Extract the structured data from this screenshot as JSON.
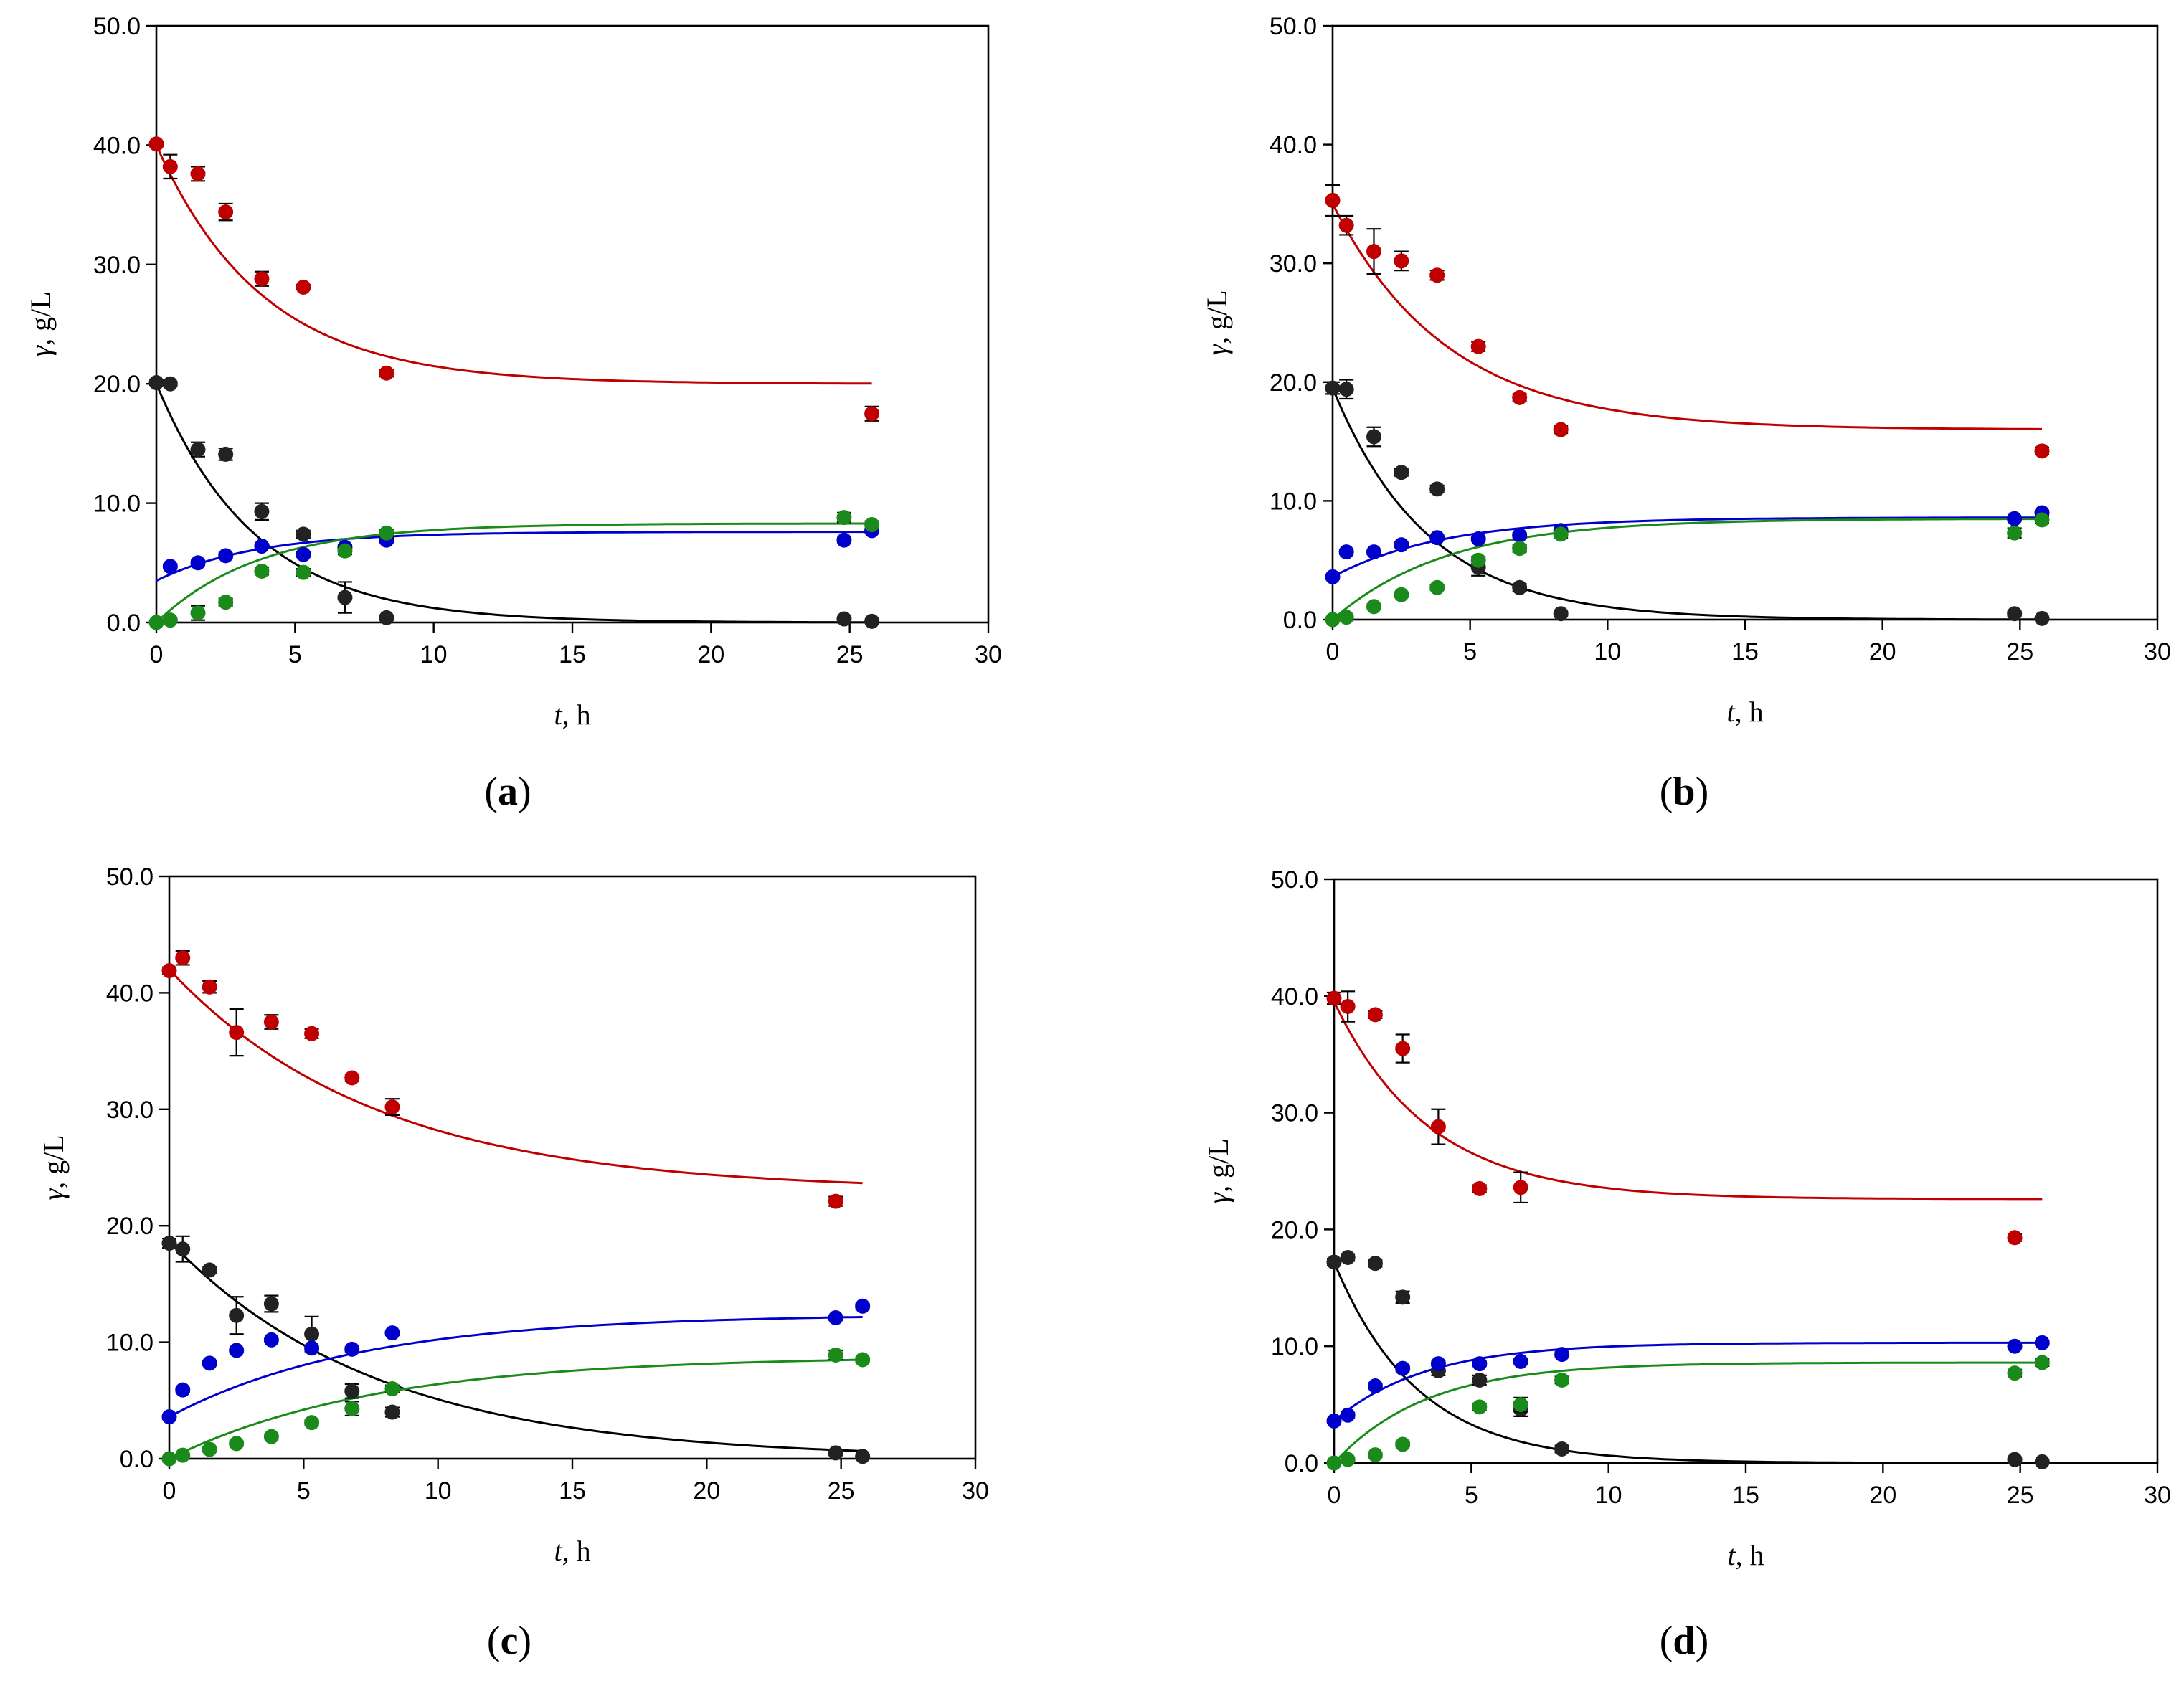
{
  "chart_data": [
    {
      "type": "scatter",
      "label": "a",
      "xlabel_var": "t",
      "xlabel_unit": ", h",
      "ylabel_var": "γ",
      "ylabel_unit": ", g/L",
      "xlim": [
        0,
        30
      ],
      "ylim": [
        0,
        50
      ],
      "xticks": [
        0,
        5,
        10,
        15,
        20,
        25,
        30
      ],
      "yticks": [
        "0.0",
        "10.0",
        "20.0",
        "30.0",
        "40.0",
        "50.0"
      ],
      "series": [
        {
          "color": "#c00000",
          "x": [
            0,
            0.5,
            1.5,
            2.5,
            3.8,
            5.3,
            8.3,
            25.8
          ],
          "y": [
            40.1,
            38.2,
            37.6,
            34.4,
            28.8,
            28.1,
            20.9,
            17.5
          ],
          "err": [
            0.2,
            1.0,
            0.6,
            0.7,
            0.6,
            0.2,
            0.3,
            0.6
          ]
        },
        {
          "color": "#222222",
          "x": [
            0,
            0.5,
            1.5,
            2.5,
            3.8,
            5.3,
            6.8,
            8.3,
            24.8,
            25.8
          ],
          "y": [
            20.1,
            20.0,
            14.5,
            14.1,
            9.3,
            7.4,
            2.1,
            0.4,
            0.3,
            0.1
          ],
          "err": [
            0.2,
            0.2,
            0.6,
            0.5,
            0.7,
            0.3,
            1.3,
            0.2,
            0.1,
            0.1
          ]
        },
        {
          "color": "#0000cc",
          "x": [
            0.5,
            1.5,
            2.5,
            3.8,
            5.3,
            6.8,
            8.3,
            24.8,
            25.8
          ],
          "y": [
            4.7,
            5.0,
            5.6,
            6.4,
            5.7,
            6.3,
            6.9,
            6.9,
            7.7
          ],
          "err": [
            0.2,
            0.2,
            0.2,
            0.2,
            0.2,
            0.2,
            0.2,
            0.2,
            0.2
          ]
        },
        {
          "color": "#1a8a1a",
          "x": [
            0,
            0.5,
            1.5,
            2.5,
            3.8,
            5.3,
            6.8,
            8.3,
            24.8,
            25.8
          ],
          "y": [
            0.0,
            0.2,
            0.8,
            1.7,
            4.3,
            4.2,
            6.0,
            7.5,
            8.8,
            8.2
          ],
          "err": [
            0.1,
            0.1,
            0.6,
            0.3,
            0.3,
            0.3,
            0.3,
            0.3,
            0.4,
            0.3
          ]
        }
      ],
      "fits": [
        {
          "color": "#c00000",
          "y0": 40.0,
          "yinf": 20.0,
          "k": 0.26
        },
        {
          "color": "#000000",
          "y0": 20.0,
          "yinf": 0.0,
          "k": 0.28
        },
        {
          "color": "#0000cc",
          "y0": 3.5,
          "yinf": 7.6,
          "k": 0.28
        },
        {
          "color": "#1a8a1a",
          "y0": 0.0,
          "yinf": 8.3,
          "k": 0.27
        }
      ]
    },
    {
      "type": "scatter",
      "label": "b",
      "xlabel_var": "t",
      "xlabel_unit": ", h",
      "ylabel_var": "γ",
      "ylabel_unit": ", g/L",
      "xlim": [
        0,
        30
      ],
      "ylim": [
        0,
        50
      ],
      "xticks": [
        0,
        5,
        10,
        15,
        20,
        25,
        30
      ],
      "yticks": [
        "0.0",
        "10.0",
        "20.0",
        "30.0",
        "40.0",
        "50.0"
      ],
      "series": [
        {
          "color": "#c00000",
          "x": [
            0,
            0.5,
            1.5,
            2.5,
            3.8,
            5.3,
            6.8,
            8.3,
            25.8
          ],
          "y": [
            35.3,
            33.2,
            31.0,
            30.2,
            29.0,
            23.0,
            18.7,
            16.0,
            14.2
          ],
          "err": [
            1.3,
            0.8,
            1.9,
            0.8,
            0.4,
            0.4,
            0.3,
            0.3,
            0.3
          ]
        },
        {
          "color": "#222222",
          "x": [
            0,
            0.5,
            1.5,
            2.5,
            3.8,
            5.3,
            6.8,
            8.3,
            24.8,
            25.8
          ],
          "y": [
            19.5,
            19.4,
            15.4,
            12.4,
            11.0,
            4.4,
            2.7,
            0.5,
            0.5,
            0.1
          ],
          "err": [
            0.5,
            0.8,
            0.8,
            0.3,
            0.3,
            0.7,
            0.3,
            0.2,
            0.2,
            0.1
          ]
        },
        {
          "color": "#0000cc",
          "x": [
            0,
            0.5,
            1.5,
            2.5,
            3.8,
            5.3,
            6.8,
            8.3,
            24.8,
            25.8
          ],
          "y": [
            3.6,
            5.7,
            5.7,
            6.3,
            6.9,
            6.8,
            7.1,
            7.5,
            8.5,
            9.0
          ],
          "err": [
            0.2,
            0.2,
            0.2,
            0.2,
            0.2,
            0.2,
            0.2,
            0.2,
            0.2,
            0.2
          ]
        },
        {
          "color": "#1a8a1a",
          "x": [
            0,
            0.5,
            1.5,
            2.5,
            3.8,
            5.3,
            6.8,
            8.3,
            24.8,
            25.8
          ],
          "y": [
            0.0,
            0.2,
            1.1,
            2.1,
            2.7,
            5.0,
            6.0,
            7.2,
            7.3,
            8.4
          ],
          "err": [
            0.1,
            0.1,
            0.2,
            0.2,
            0.2,
            0.3,
            0.3,
            0.3,
            0.4,
            0.3
          ]
        }
      ],
      "fits": [
        {
          "color": "#c00000",
          "y0": 35.0,
          "yinf": 16.0,
          "k": 0.24
        },
        {
          "color": "#000000",
          "y0": 19.5,
          "yinf": 0.0,
          "k": 0.29
        },
        {
          "color": "#0000cc",
          "y0": 3.6,
          "yinf": 8.6,
          "k": 0.25
        },
        {
          "color": "#1a8a1a",
          "y0": 0.0,
          "yinf": 8.5,
          "k": 0.24
        }
      ]
    },
    {
      "type": "scatter",
      "label": "c",
      "xlabel_var": "t",
      "xlabel_unit": ", h",
      "ylabel_var": "γ",
      "ylabel_unit": ", g/L",
      "xlim": [
        0,
        30
      ],
      "ylim": [
        0,
        50
      ],
      "xticks": [
        0,
        5,
        10,
        15,
        20,
        25,
        30
      ],
      "yticks": [
        "0.0",
        "10.0",
        "20.0",
        "30.0",
        "40.0",
        "50.0"
      ],
      "series": [
        {
          "color": "#c00000",
          "x": [
            0,
            0.5,
            1.5,
            2.5,
            3.8,
            5.3,
            6.8,
            8.3,
            24.8
          ],
          "y": [
            41.9,
            43.0,
            40.5,
            36.6,
            37.5,
            36.5,
            32.7,
            30.2,
            22.1
          ],
          "err": [
            0.3,
            0.6,
            0.5,
            2.0,
            0.6,
            0.4,
            0.3,
            0.7,
            0.4
          ]
        },
        {
          "color": "#222222",
          "x": [
            0,
            0.5,
            1.5,
            2.5,
            3.8,
            5.3,
            6.8,
            8.3,
            24.8,
            25.8
          ],
          "y": [
            18.5,
            18.0,
            16.2,
            12.3,
            13.3,
            10.7,
            5.8,
            4.0,
            0.5,
            0.2
          ],
          "err": [
            0.4,
            1.1,
            0.3,
            1.6,
            0.7,
            1.5,
            0.6,
            0.4,
            0.2,
            0.1
          ]
        },
        {
          "color": "#0000cc",
          "x": [
            0,
            0.5,
            1.5,
            2.5,
            3.8,
            5.3,
            6.8,
            8.3,
            24.8,
            25.8
          ],
          "y": [
            3.6,
            5.9,
            8.2,
            9.3,
            10.2,
            9.5,
            9.4,
            10.8,
            12.1,
            13.1
          ],
          "err": [
            0.2,
            0.2,
            0.2,
            0.2,
            0.2,
            0.2,
            0.2,
            0.2,
            0.2,
            0.2
          ]
        },
        {
          "color": "#1a8a1a",
          "x": [
            0,
            0.5,
            1.5,
            2.5,
            3.8,
            5.3,
            6.8,
            8.3,
            24.8,
            25.8
          ],
          "y": [
            0.0,
            0.3,
            0.8,
            1.3,
            1.9,
            3.1,
            4.3,
            6.0,
            8.9,
            8.5
          ],
          "err": [
            0.1,
            0.1,
            0.2,
            0.2,
            0.2,
            0.2,
            0.6,
            0.3,
            0.4,
            0.2
          ]
        }
      ],
      "fits": [
        {
          "color": "#c00000",
          "y0": 42.0,
          "yinf": 23.0,
          "k": 0.13
        },
        {
          "color": "#000000",
          "y0": 18.7,
          "yinf": 0.0,
          "k": 0.13
        },
        {
          "color": "#0000cc",
          "y0": 3.6,
          "yinf": 12.4,
          "k": 0.14
        },
        {
          "color": "#1a8a1a",
          "y0": 0.0,
          "yinf": 8.8,
          "k": 0.13
        }
      ]
    },
    {
      "type": "scatter",
      "label": "d",
      "xlabel_var": "t",
      "xlabel_unit": ", h",
      "ylabel_var": "γ",
      "ylabel_unit": ", g/L",
      "xlim": [
        0,
        30
      ],
      "ylim": [
        0,
        50
      ],
      "xticks": [
        0,
        5,
        10,
        15,
        20,
        25,
        30
      ],
      "yticks": [
        "0.0",
        "10.0",
        "20.0",
        "30.0",
        "40.0",
        "50.0"
      ],
      "series": [
        {
          "color": "#c00000",
          "x": [
            0,
            0.5,
            1.5,
            2.5,
            3.8,
            5.3,
            6.8,
            24.8
          ],
          "y": [
            39.8,
            39.1,
            38.4,
            35.5,
            28.8,
            23.5,
            23.6,
            19.3
          ],
          "err": [
            0.5,
            1.3,
            0.3,
            1.2,
            1.5,
            0.3,
            1.3,
            0.3
          ]
        },
        {
          "color": "#222222",
          "x": [
            0,
            0.5,
            1.5,
            2.5,
            3.8,
            5.3,
            6.8,
            8.3,
            24.8,
            25.8
          ],
          "y": [
            17.2,
            17.6,
            17.1,
            14.2,
            7.9,
            7.1,
            4.6,
            1.2,
            0.3,
            0.1
          ],
          "err": [
            0.3,
            0.3,
            0.3,
            0.5,
            0.4,
            0.4,
            0.6,
            0.3,
            0.1,
            0.1
          ]
        },
        {
          "color": "#0000cc",
          "x": [
            0,
            0.5,
            1.5,
            2.5,
            3.8,
            5.3,
            6.8,
            8.3,
            24.8,
            25.8
          ],
          "y": [
            3.6,
            4.1,
            6.6,
            8.1,
            8.5,
            8.5,
            8.7,
            9.3,
            10.0,
            10.3
          ],
          "err": [
            0.2,
            0.2,
            0.2,
            0.2,
            0.2,
            0.2,
            0.2,
            0.2,
            0.2,
            0.2
          ]
        },
        {
          "color": "#1a8a1a",
          "x": [
            0,
            0.5,
            1.5,
            2.5,
            5.3,
            6.8,
            8.3,
            24.8,
            25.8
          ],
          "y": [
            0.0,
            0.3,
            0.7,
            1.6,
            4.8,
            5.0,
            7.1,
            7.7,
            8.6
          ],
          "err": [
            0.1,
            0.1,
            0.2,
            0.2,
            0.3,
            0.6,
            0.3,
            0.3,
            0.3
          ]
        }
      ],
      "fits": [
        {
          "color": "#c00000",
          "y0": 39.5,
          "yinf": 22.6,
          "k": 0.29
        },
        {
          "color": "#000000",
          "y0": 17.2,
          "yinf": 0.0,
          "k": 0.33
        },
        {
          "color": "#0000cc",
          "y0": 3.6,
          "yinf": 10.3,
          "k": 0.3
        },
        {
          "color": "#1a8a1a",
          "y0": 0.0,
          "yinf": 8.6,
          "k": 0.3
        }
      ]
    }
  ]
}
